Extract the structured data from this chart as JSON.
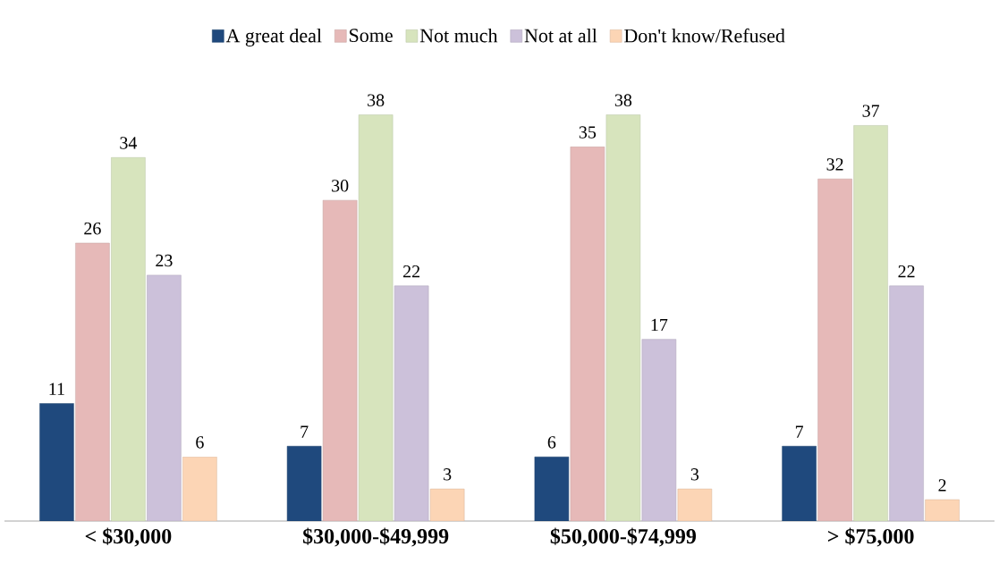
{
  "chart_data": {
    "type": "bar",
    "categories": [
      "< $30,000",
      "$30,000-$49,999",
      "$50,000-$74,999",
      "> $75,000"
    ],
    "series": [
      {
        "name": "A great deal",
        "color": "#1f497d",
        "values": [
          11,
          7,
          6,
          7
        ]
      },
      {
        "name": "Some",
        "color": "#e6b9b8",
        "values": [
          26,
          30,
          35,
          32
        ]
      },
      {
        "name": "Not much",
        "color": "#d7e4bd",
        "values": [
          34,
          38,
          38,
          37
        ]
      },
      {
        "name": "Not at all",
        "color": "#ccc1da",
        "values": [
          23,
          22,
          17,
          22
        ]
      },
      {
        "name": "Don't know/Refused",
        "color": "#fcd5b5",
        "values": [
          6,
          3,
          3,
          2
        ]
      }
    ],
    "data_labels": true,
    "legend": "top"
  }
}
